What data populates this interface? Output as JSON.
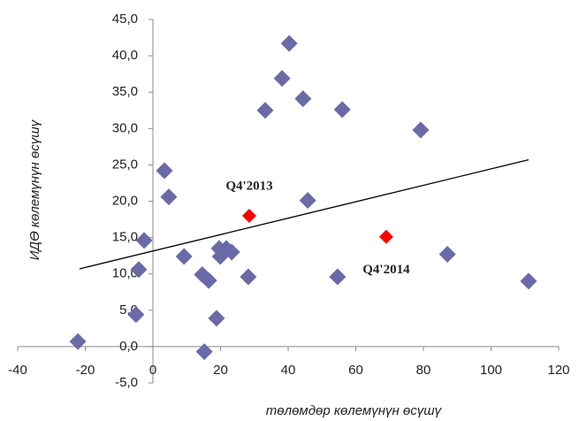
{
  "chart_data": {
    "type": "scatter",
    "x_label": "төлөмдөр көлемүнүн өсүшү",
    "y_label": "ИДӨ көлемүнүн өсүшү",
    "xlim": [
      -40,
      120
    ],
    "xticks": [
      -40,
      -20,
      0,
      20,
      40,
      60,
      80,
      100,
      120
    ],
    "ylim": [
      -5,
      45
    ],
    "yticks": [
      {
        "value": -5,
        "label": "-5,0"
      },
      {
        "value": 0,
        "label": "0,0"
      },
      {
        "value": 5,
        "label": "5,0"
      },
      {
        "value": 10,
        "label": "10,0"
      },
      {
        "value": 15,
        "label": "15,0"
      },
      {
        "value": 20,
        "label": "20,0"
      },
      {
        "value": 25,
        "label": "25,0"
      },
      {
        "value": 30,
        "label": "30,0"
      },
      {
        "value": 35,
        "label": "35,0"
      },
      {
        "value": 40,
        "label": "40,0"
      },
      {
        "value": 45,
        "label": "45,0"
      }
    ],
    "grid": false,
    "series": [
      {
        "color": "#6a6aa8",
        "x": [
          -22.2,
          3.4,
          4.7,
          -2.6,
          -4.2,
          -5,
          9.2,
          15.2,
          14.6,
          16.5,
          18.8,
          19.6,
          19.9,
          21.7,
          23.3,
          28.2,
          33.2,
          38.2,
          40.3,
          44.4,
          45.8,
          54.6,
          56,
          79.2,
          87.1,
          111.1
        ],
        "values": [
          0.7,
          24.2,
          20.6,
          14.6,
          10.6,
          4.4,
          12.4,
          -0.7,
          9.9,
          9.1,
          3.9,
          13.5,
          12.4,
          13.5,
          13.0,
          9.6,
          32.5,
          36.9,
          41.7,
          34.1,
          20.1,
          9.6,
          32.6,
          29.8,
          12.7,
          9.0
        ]
      },
      {
        "color": "#ff0000",
        "x": [
          28.5,
          69
        ],
        "values": [
          18.0,
          15.1
        ]
      }
    ],
    "trendline": {
      "color": "#000000",
      "x": [
        -21.7,
        111.1
      ],
      "values": [
        10.7,
        25.7
      ]
    },
    "annotations": [
      "Q4'2013",
      "Q4'2014"
    ]
  }
}
